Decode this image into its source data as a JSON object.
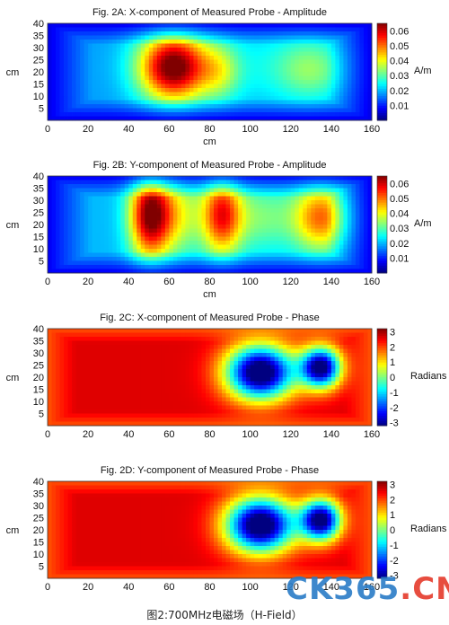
{
  "figure": {
    "caption": "图2:700MHz电磁场（H-Field）",
    "watermark_brand": "CK365",
    "watermark_dot": ".",
    "watermark_tld": "CN"
  },
  "chart_data": [
    {
      "type": "heatmap",
      "title": "Fig. 2A: X-component of Measured Probe - Amplitude",
      "xlabel": "cm",
      "ylabel": "cm",
      "xlim": [
        0,
        160
      ],
      "ylim": [
        0,
        40
      ],
      "xticks": [
        0,
        20,
        40,
        60,
        80,
        100,
        120,
        140,
        160
      ],
      "yticks": [
        5,
        10,
        15,
        20,
        25,
        30,
        35,
        40
      ],
      "colorbar": {
        "label": "A/m",
        "min": 0,
        "max": 0.065,
        "ticks": [
          0.01,
          0.02,
          0.03,
          0.04,
          0.05,
          0.06
        ],
        "colormap": "jet"
      },
      "field": {
        "base": 0.018,
        "blobs": [
          {
            "x": 62,
            "y": 22,
            "sx": 12,
            "sy": 10,
            "amp": 0.047
          },
          {
            "x": 85,
            "y": 20,
            "sx": 7,
            "sy": 8,
            "amp": 0.012
          },
          {
            "x": 100,
            "y": 22,
            "sx": 34,
            "sy": 12,
            "amp": 0.006
          },
          {
            "x": 130,
            "y": 21,
            "sx": 12,
            "sy": 9,
            "amp": 0.012
          }
        ]
      }
    },
    {
      "type": "heatmap",
      "title": "Fig. 2B: Y-component of Measured Probe - Amplitude",
      "xlabel": "cm",
      "ylabel": "cm",
      "xlim": [
        0,
        160
      ],
      "ylim": [
        0,
        40
      ],
      "xticks": [
        0,
        20,
        40,
        60,
        80,
        100,
        120,
        140,
        160
      ],
      "yticks": [
        5,
        10,
        15,
        20,
        25,
        30,
        35,
        40
      ],
      "colorbar": {
        "label": "A/m",
        "min": 0,
        "max": 0.065,
        "ticks": [
          0.01,
          0.02,
          0.03,
          0.04,
          0.05,
          0.06
        ],
        "colormap": "jet"
      },
      "field": {
        "base": 0.02,
        "blobs": [
          {
            "x": 50,
            "y": 24,
            "sx": 7,
            "sy": 13,
            "amp": 0.038
          },
          {
            "x": 62,
            "y": 24,
            "sx": 10,
            "sy": 12,
            "amp": 0.02
          },
          {
            "x": 86,
            "y": 24,
            "sx": 7,
            "sy": 12,
            "amp": 0.034
          },
          {
            "x": 105,
            "y": 23,
            "sx": 12,
            "sy": 10,
            "amp": 0.012
          },
          {
            "x": 135,
            "y": 23,
            "sx": 10,
            "sy": 10,
            "amp": 0.03
          }
        ]
      }
    },
    {
      "type": "heatmap",
      "title": "Fig. 2C: X-component of Measured Probe - Phase",
      "xlabel": "",
      "ylabel": "cm",
      "xlim": [
        0,
        160
      ],
      "ylim": [
        0,
        40
      ],
      "xticks": [
        0,
        20,
        40,
        60,
        80,
        100,
        120,
        140,
        160
      ],
      "yticks": [
        5,
        10,
        15,
        20,
        25,
        30,
        35,
        40
      ],
      "colorbar": {
        "label": "Radians",
        "min": -3.2,
        "max": 3.2,
        "ticks": [
          3,
          2,
          1,
          0,
          -1,
          -2,
          -3
        ],
        "colormap": "jet"
      },
      "field": {
        "base": 2.6,
        "blobs": [
          {
            "x": 105,
            "y": 22,
            "sx": 12,
            "sy": 8,
            "amp": -6.5
          },
          {
            "x": 135,
            "y": 24,
            "sx": 7,
            "sy": 6,
            "amp": -6.0
          }
        ]
      }
    },
    {
      "type": "heatmap",
      "title": "Fig. 2D: Y-component of Measured Probe - Phase",
      "xlabel": "",
      "ylabel": "cm",
      "xlim": [
        0,
        160
      ],
      "ylim": [
        0,
        40
      ],
      "xticks": [
        0,
        20,
        40,
        60,
        80,
        100,
        120,
        140,
        160
      ],
      "yticks": [
        5,
        10,
        15,
        20,
        25,
        30,
        35,
        40
      ],
      "colorbar": {
        "label": "Radians",
        "min": -3.2,
        "max": 3.2,
        "ticks": [
          3,
          2,
          1,
          0,
          -1,
          -2,
          -3
        ],
        "colormap": "jet"
      },
      "field": {
        "base": 2.6,
        "blobs": [
          {
            "x": 105,
            "y": 22,
            "sx": 12,
            "sy": 8,
            "amp": -6.5
          },
          {
            "x": 135,
            "y": 24,
            "sx": 7,
            "sy": 6,
            "amp": -6.0
          }
        ]
      }
    }
  ]
}
